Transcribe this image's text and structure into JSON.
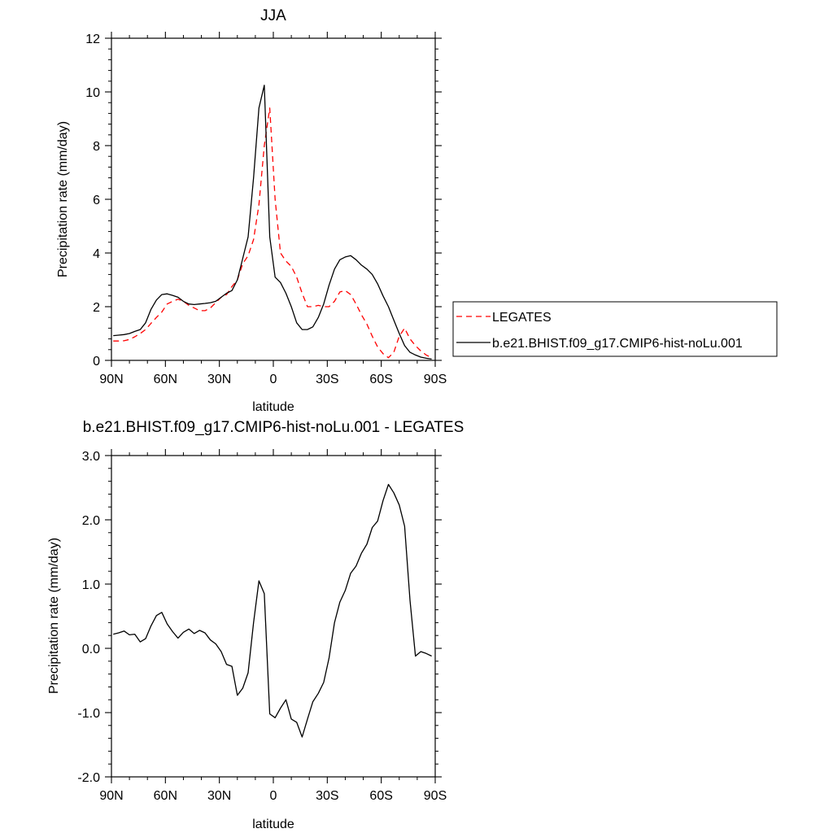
{
  "chart_data": [
    {
      "type": "line",
      "title": "JJA",
      "xlabel": "latitude",
      "ylabel": "Precipitation rate (mm/day)",
      "xlim": [
        90,
        -90
      ],
      "ylim": [
        0,
        12
      ],
      "x_ticks": [
        {
          "value": 90,
          "label": "90N"
        },
        {
          "value": 60,
          "label": "60N"
        },
        {
          "value": 30,
          "label": "30N"
        },
        {
          "value": 0,
          "label": "0"
        },
        {
          "value": -30,
          "label": "30S"
        },
        {
          "value": -60,
          "label": "60S"
        },
        {
          "value": -90,
          "label": "90S"
        }
      ],
      "y_ticks": [
        {
          "value": 0,
          "label": "0"
        },
        {
          "value": 2,
          "label": "2"
        },
        {
          "value": 4,
          "label": "4"
        },
        {
          "value": 6,
          "label": "6"
        },
        {
          "value": 8,
          "label": "8"
        },
        {
          "value": 10,
          "label": "10"
        },
        {
          "value": 12,
          "label": "12"
        }
      ],
      "legend_position": "right",
      "series": [
        {
          "name": "LEGATES",
          "color": "#ff0000",
          "dashed": true,
          "x": [
            89,
            86,
            83,
            80,
            77,
            74,
            71,
            68,
            65,
            62,
            59,
            56,
            53,
            50,
            47,
            44,
            41,
            38,
            35,
            32,
            29,
            26,
            23,
            20,
            17,
            14,
            11,
            8,
            5,
            2,
            -1,
            -4,
            -7,
            -10,
            -13,
            -16,
            -19,
            -22,
            -25,
            -28,
            -31,
            -34,
            -37,
            -40,
            -43,
            -46,
            -49,
            -52,
            -55,
            -58,
            -61,
            -64,
            -67,
            -70,
            -73,
            -76,
            -79,
            -82,
            -85,
            -88
          ],
          "y": [
            0.72,
            0.72,
            0.73,
            0.78,
            0.88,
            1.0,
            1.15,
            1.38,
            1.6,
            1.8,
            2.1,
            2.2,
            2.28,
            2.2,
            2.05,
            1.95,
            1.85,
            1.85,
            1.95,
            2.15,
            2.35,
            2.45,
            2.75,
            3.0,
            3.6,
            3.9,
            4.5,
            5.8,
            8.0,
            9.4,
            6.0,
            4.0,
            3.7,
            3.5,
            3.1,
            2.5,
            2.0,
            2.0,
            2.05,
            2.0,
            2.0,
            2.2,
            2.55,
            2.6,
            2.45,
            2.1,
            1.7,
            1.35,
            0.9,
            0.5,
            0.25,
            0.1,
            0.3,
            0.9,
            1.2,
            0.8,
            0.55,
            0.35,
            0.2,
            0.1
          ]
        },
        {
          "name": "b.e21.BHIST.f09_g17.CMIP6-hist-noLu.001",
          "color": "#000000",
          "dashed": false,
          "x": [
            89,
            86,
            83,
            80,
            77,
            74,
            71,
            68,
            65,
            62,
            59,
            56,
            53,
            50,
            47,
            44,
            41,
            38,
            35,
            32,
            29,
            26,
            23,
            20,
            17,
            14,
            11,
            8,
            5,
            2,
            -1,
            -4,
            -7,
            -10,
            -13,
            -16,
            -19,
            -22,
            -25,
            -28,
            -31,
            -34,
            -37,
            -40,
            -43,
            -46,
            -49,
            -52,
            -55,
            -58,
            -61,
            -64,
            -67,
            -70,
            -73,
            -76,
            -79,
            -82,
            -85,
            -88
          ],
          "y": [
            0.92,
            0.94,
            0.96,
            1.0,
            1.08,
            1.15,
            1.4,
            1.9,
            2.25,
            2.45,
            2.48,
            2.42,
            2.35,
            2.2,
            2.1,
            2.08,
            2.1,
            2.12,
            2.15,
            2.2,
            2.35,
            2.5,
            2.6,
            3.0,
            3.8,
            4.6,
            6.8,
            9.4,
            10.25,
            4.6,
            3.1,
            2.9,
            2.5,
            2.0,
            1.4,
            1.15,
            1.15,
            1.25,
            1.6,
            2.1,
            2.8,
            3.4,
            3.75,
            3.85,
            3.9,
            3.75,
            3.55,
            3.4,
            3.2,
            2.85,
            2.4,
            2.0,
            1.5,
            1.0,
            0.55,
            0.3,
            0.2,
            0.12,
            0.08,
            0.05
          ]
        }
      ]
    },
    {
      "type": "line",
      "title": "b.e21.BHIST.f09_g17.CMIP6-hist-noLu.001 - LEGATES",
      "xlabel": "latitude",
      "ylabel": "Precipitation rate (mm/day)",
      "xlim": [
        90,
        -90
      ],
      "ylim": [
        -2.0,
        3.0
      ],
      "x_ticks": [
        {
          "value": 90,
          "label": "90N"
        },
        {
          "value": 60,
          "label": "60N"
        },
        {
          "value": 30,
          "label": "30N"
        },
        {
          "value": 0,
          "label": "0"
        },
        {
          "value": -30,
          "label": "30S"
        },
        {
          "value": -60,
          "label": "60S"
        },
        {
          "value": -90,
          "label": "90S"
        }
      ],
      "y_ticks": [
        {
          "value": -2.0,
          "label": "-2.0"
        },
        {
          "value": -1.0,
          "label": "-1.0"
        },
        {
          "value": 0.0,
          "label": "0.0"
        },
        {
          "value": 1.0,
          "label": "1.0"
        },
        {
          "value": 2.0,
          "label": "2.0"
        },
        {
          "value": 3.0,
          "label": "3.0"
        }
      ],
      "series": [
        {
          "color": "#000000",
          "dashed": false,
          "x": [
            89,
            86,
            83,
            80,
            77,
            74,
            71,
            68,
            65,
            62,
            59,
            56,
            53,
            50,
            47,
            44,
            41,
            38,
            35,
            32,
            29,
            26,
            23,
            20,
            17,
            14,
            11,
            8,
            5,
            2,
            -1,
            -4,
            -7,
            -10,
            -13,
            -16,
            -19,
            -22,
            -25,
            -28,
            -31,
            -34,
            -37,
            -40,
            -43,
            -46,
            -49,
            -52,
            -55,
            -58,
            -61,
            -64,
            -67,
            -70,
            -73,
            -76,
            -79,
            -82,
            -85,
            -88
          ],
          "y": [
            0.22,
            0.24,
            0.27,
            0.21,
            0.22,
            0.1,
            0.15,
            0.35,
            0.51,
            0.56,
            0.38,
            0.26,
            0.16,
            0.25,
            0.3,
            0.23,
            0.28,
            0.24,
            0.13,
            0.07,
            -0.05,
            -0.25,
            -0.28,
            -0.73,
            -0.62,
            -0.38,
            0.4,
            1.05,
            0.85,
            -1.02,
            -1.08,
            -0.93,
            -0.8,
            -1.1,
            -1.15,
            -1.38,
            -1.1,
            -0.83,
            -0.7,
            -0.53,
            -0.15,
            0.4,
            0.72,
            0.9,
            1.17,
            1.28,
            1.48,
            1.62,
            1.88,
            1.98,
            2.3,
            2.55,
            2.42,
            2.23,
            1.9,
            0.75,
            -0.12,
            -0.05,
            -0.08,
            -0.12
          ]
        }
      ]
    }
  ]
}
